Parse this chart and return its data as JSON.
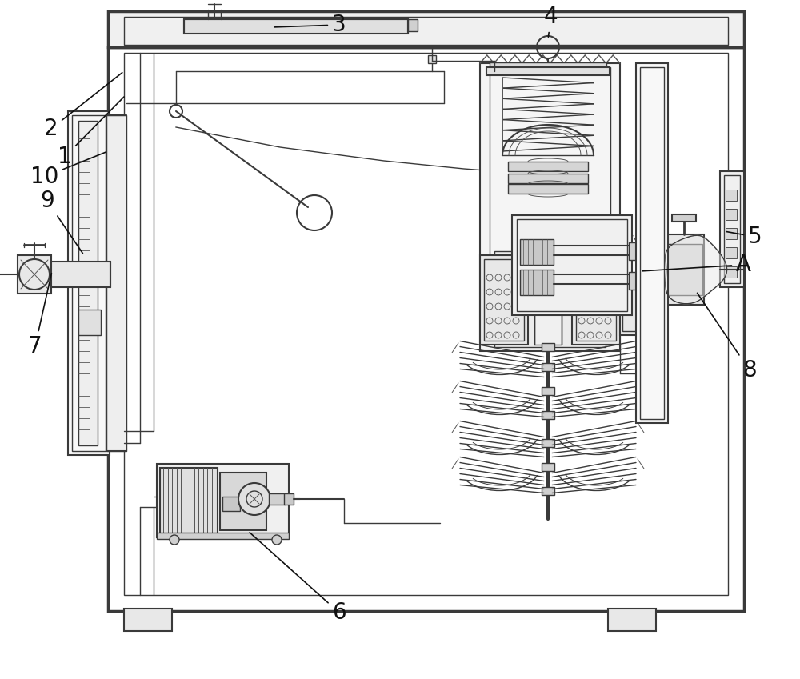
{
  "bg_color": "#ffffff",
  "lc": "#3a3a3a",
  "lc2": "#555555",
  "lc_light": "#888888",
  "lw_thick": 2.5,
  "lw_med": 1.5,
  "lw_thin": 1.0,
  "lw_fine": 0.7,
  "fig_width": 10.0,
  "fig_height": 8.49,
  "label_fontsize": 20,
  "ann_fontsize": 20
}
